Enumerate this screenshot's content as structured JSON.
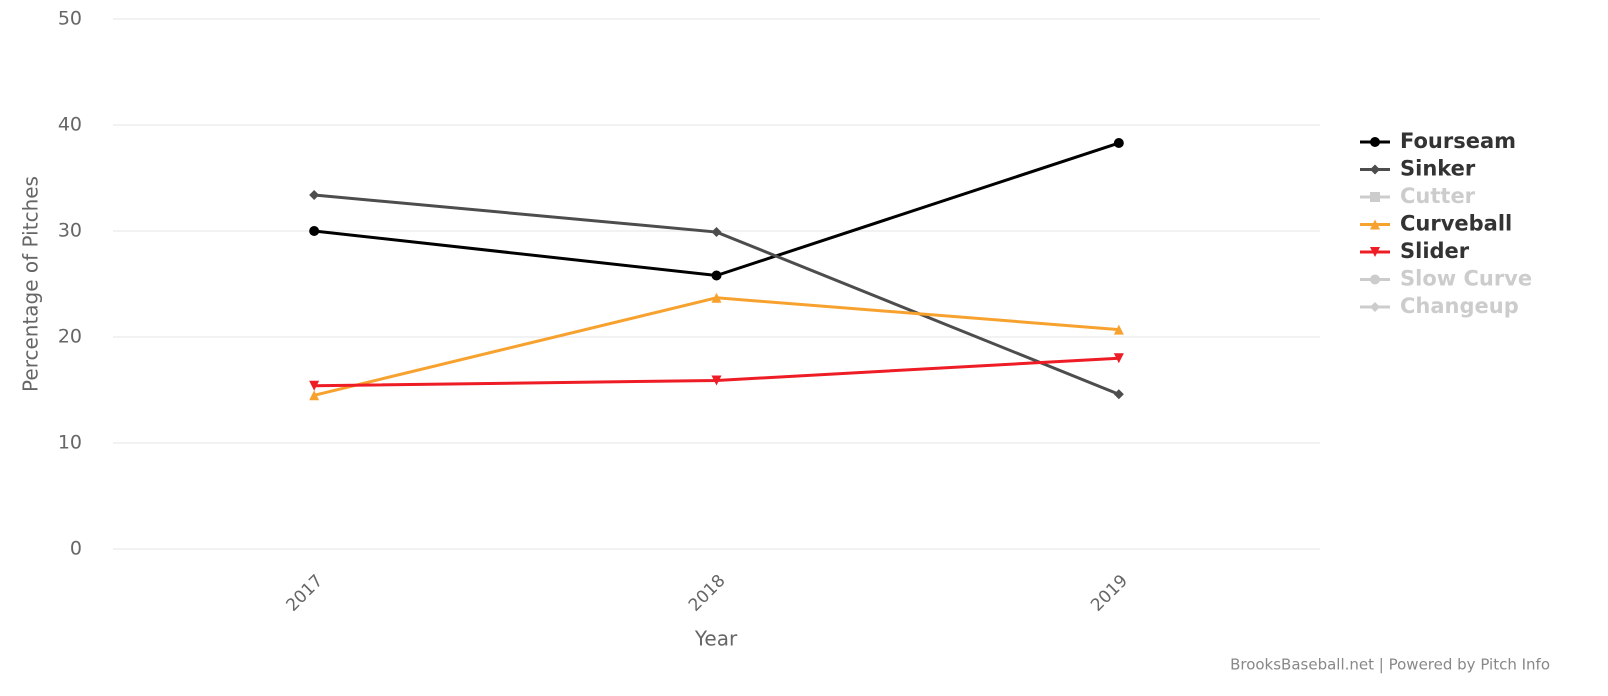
{
  "chart_data": {
    "type": "line",
    "x_label": "Year",
    "y_label": "Percentage of Pitches",
    "credits": "BrooksBaseball.net | Powered by Pitch Info",
    "categories": [
      "2017",
      "2018",
      "2019"
    ],
    "ylim": [
      0,
      50
    ],
    "yticks": [
      0,
      10,
      20,
      30,
      40,
      50
    ],
    "grid": true,
    "legend": "right",
    "series": [
      {
        "name": "Fourseam",
        "color": "#000000",
        "marker": "circle",
        "values": [
          30.0,
          25.8,
          38.3
        ]
      },
      {
        "name": "Sinker",
        "color": "#4d4d4d",
        "marker": "diamond",
        "values": [
          33.4,
          29.9,
          14.6
        ]
      },
      {
        "name": "Cutter",
        "color": "#cccccc",
        "marker": "square",
        "hidden": true,
        "values": [
          null,
          null,
          null
        ]
      },
      {
        "name": "Curveball",
        "color": "#f7a22f",
        "marker": "triangle",
        "values": [
          14.5,
          23.7,
          20.7
        ]
      },
      {
        "name": "Slider",
        "color": "#ee1c25",
        "marker": "triangle-down",
        "values": [
          15.4,
          15.9,
          18.0
        ]
      },
      {
        "name": "Slow Curve",
        "color": "#cccccc",
        "marker": "circle",
        "hidden": true,
        "values": [
          null,
          null,
          null
        ]
      },
      {
        "name": "Changeup",
        "color": "#cccccc",
        "marker": "diamond",
        "hidden": true,
        "values": [
          null,
          null,
          null
        ]
      }
    ]
  }
}
